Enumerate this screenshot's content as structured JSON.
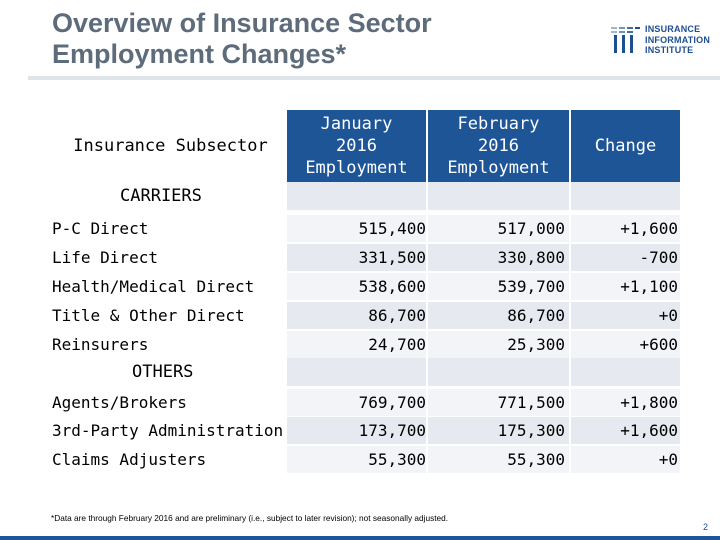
{
  "slide": {
    "title": "Overview of Insurance Sector Employment Changes*",
    "logo": {
      "line1": "INSURANCE",
      "line2": "INFORMATION",
      "line3": "INSTITUTE",
      "icon": "iii-logo-icon",
      "accent": "#1d4f91"
    },
    "footnote": "*Data are through February 2016 and are preliminary (i.e., subject to later revision); not seasonally adjusted.",
    "page_number": "2"
  },
  "table": {
    "header": {
      "subsector": "Insurance Subsector",
      "jan_line1": "January",
      "jan_line2": "2016",
      "jan_line3": "Employment",
      "feb_line1": "February",
      "feb_line2": "2016",
      "feb_line3": "Employment",
      "change": "Change"
    },
    "groups": [
      {
        "label": "CARRIERS",
        "rows": [
          {
            "name": "P-C Direct",
            "jan": "515,400",
            "feb": "517,000",
            "change": "+1,600"
          },
          {
            "name": "Life Direct",
            "jan": "331,500",
            "feb": "330,800",
            "change": "-700"
          },
          {
            "name": "Health/Medical Direct",
            "jan": "538,600",
            "feb": "539,700",
            "change": "+1,100"
          },
          {
            "name": "Title & Other Direct",
            "jan": "86,700",
            "feb": "86,700",
            "change": "+0"
          },
          {
            "name": "Reinsurers",
            "jan": "24,700",
            "feb": "25,300",
            "change": "+600"
          }
        ]
      },
      {
        "label": "OTHERS",
        "rows": [
          {
            "name": "Agents/Brokers",
            "jan": "769,700",
            "feb": "771,500",
            "change": "+1,800"
          },
          {
            "name": "3rd-Party Administration",
            "jan": "173,700",
            "feb": "175,300",
            "change": "+1,600"
          },
          {
            "name": "Claims Adjusters",
            "jan": "55,300",
            "feb": "55,300",
            "change": "+0"
          }
        ]
      }
    ],
    "colors": {
      "header_bg": "#1e5596",
      "row_shade_a": "#e6eaf0",
      "row_shade_b": "#f2f4f7"
    }
  }
}
